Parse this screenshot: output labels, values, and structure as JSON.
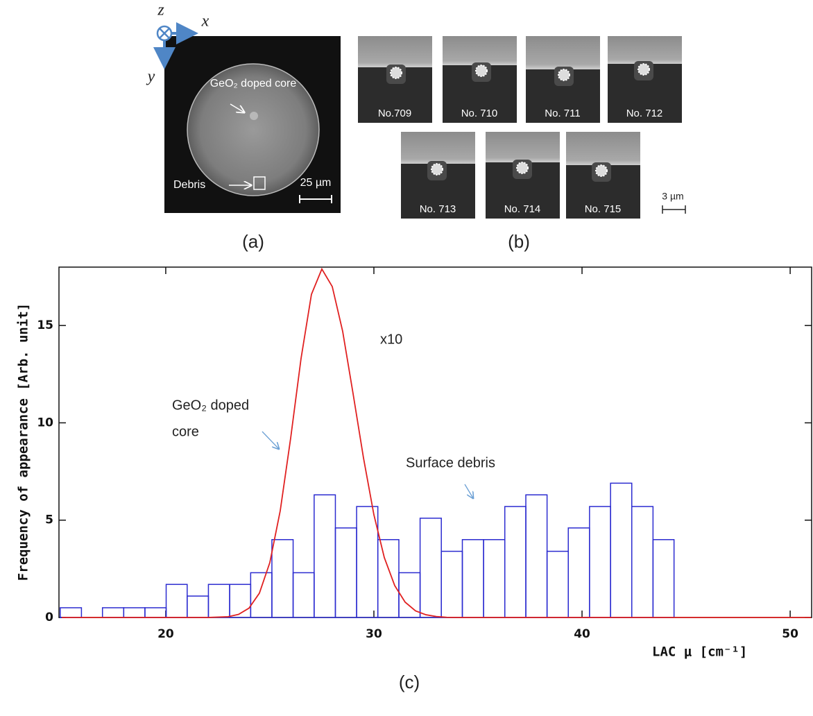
{
  "panel_a": {
    "axes": [
      "z",
      "x",
      "y"
    ],
    "core_label": "GeO₂ doped core",
    "debris_label": "Debris",
    "scale": "25 µm",
    "caption": "(a)"
  },
  "panel_b": {
    "frames": [
      "No.709",
      "No. 710",
      "No. 711",
      "No. 712",
      "No. 713",
      "No. 714",
      "No. 715"
    ],
    "scale": "3 µm",
    "caption": "(b)"
  },
  "chart_data": {
    "type": "histogram",
    "xlabel": "LAC μ [cm⁻¹]",
    "ylabel": "Frequency of appearance [Arb. unit]",
    "xlim": [
      14.87,
      51.03
    ],
    "ylim": [
      0,
      18
    ],
    "xticks": [
      20,
      30,
      40,
      50
    ],
    "yticks": [
      0,
      5,
      10,
      15
    ],
    "annotations": [
      "x10",
      "GeO₂ doped",
      "core",
      "Surface debris"
    ],
    "caption": "(c)",
    "series": [
      {
        "type": "histogram",
        "color": "#2b2bd0",
        "bins": [
          14.93,
          15.95,
          16.96,
          17.98,
          19.0,
          20.02,
          21.03,
          22.05,
          23.07,
          24.08,
          25.1,
          26.12,
          27.13,
          28.15,
          29.17,
          30.19,
          31.2,
          32.22,
          33.24,
          34.25,
          35.27,
          36.29,
          37.3,
          38.32,
          39.34,
          40.36,
          41.37,
          42.39,
          43.41,
          44.42
        ],
        "values": [
          0.5,
          0,
          0.5,
          0.5,
          0.5,
          1.7,
          1.1,
          1.7,
          1.7,
          2.3,
          4,
          2.3,
          6.3,
          4.6,
          5.7,
          4,
          2.3,
          5.1,
          3.4,
          4,
          4,
          5.7,
          6.3,
          3.4,
          4.6,
          5.7,
          6.9,
          5.7,
          4
        ]
      },
      {
        "type": "line",
        "color": "#e02020",
        "x": [
          15,
          20,
          22,
          23,
          23.5,
          24,
          24.5,
          25,
          25.5,
          26,
          26.5,
          27,
          27.5,
          28,
          28.5,
          29,
          29.5,
          30,
          30.5,
          31,
          31.5,
          32,
          32.5,
          33,
          33.5,
          34,
          36,
          40,
          51
        ],
        "values": [
          0,
          0,
          0,
          0.04,
          0.16,
          0.48,
          1.25,
          2.82,
          5.48,
          9.2,
          13.3,
          16.6,
          17.9,
          17.0,
          14.7,
          11.5,
          8.2,
          5.28,
          3.08,
          1.64,
          0.79,
          0.34,
          0.14,
          0.05,
          0.01,
          0,
          0,
          0,
          0
        ]
      }
    ]
  }
}
